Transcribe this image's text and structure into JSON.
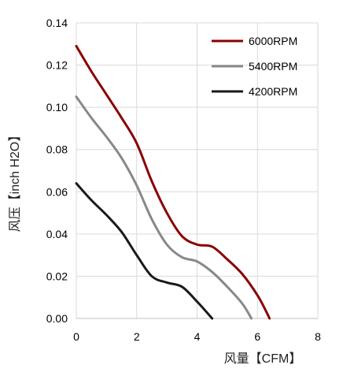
{
  "chart_data": {
    "type": "line",
    "title": "",
    "xlabel": "风量【CFM】",
    "ylabel": "风压【inch H2O】",
    "xlim": [
      0,
      8
    ],
    "ylim": [
      0,
      0.14
    ],
    "xticks": [
      "0",
      "2",
      "4",
      "6",
      "8"
    ],
    "yticks": [
      "0.00",
      "0.02",
      "0.04",
      "0.06",
      "0.08",
      "0.10",
      "0.12",
      "0.14"
    ],
    "grid": true,
    "legend_position": "top-right",
    "series": [
      {
        "name": "6000RPM",
        "color": "#8b0000",
        "points": [
          [
            0,
            0.129
          ],
          [
            0.5,
            0.117
          ],
          [
            1.0,
            0.106
          ],
          [
            1.5,
            0.095
          ],
          [
            2.0,
            0.083
          ],
          [
            2.5,
            0.065
          ],
          [
            3.0,
            0.05
          ],
          [
            3.5,
            0.039
          ],
          [
            4.0,
            0.035
          ],
          [
            4.5,
            0.034
          ],
          [
            5.0,
            0.028
          ],
          [
            5.5,
            0.021
          ],
          [
            6.0,
            0.011
          ],
          [
            6.3,
            0.003
          ],
          [
            6.4,
            0.0
          ]
        ]
      },
      {
        "name": "5400RPM",
        "color": "#888888",
        "points": [
          [
            0,
            0.105
          ],
          [
            0.5,
            0.095
          ],
          [
            1.0,
            0.086
          ],
          [
            1.5,
            0.076
          ],
          [
            2.0,
            0.063
          ],
          [
            2.5,
            0.047
          ],
          [
            3.0,
            0.035
          ],
          [
            3.5,
            0.029
          ],
          [
            4.0,
            0.027
          ],
          [
            4.5,
            0.022
          ],
          [
            5.0,
            0.015
          ],
          [
            5.5,
            0.007
          ],
          [
            5.8,
            0.0
          ]
        ]
      },
      {
        "name": "4200RPM",
        "color": "#1a1a1a",
        "points": [
          [
            0,
            0.064
          ],
          [
            0.5,
            0.056
          ],
          [
            1.0,
            0.049
          ],
          [
            1.5,
            0.041
          ],
          [
            2.0,
            0.03
          ],
          [
            2.5,
            0.02
          ],
          [
            3.0,
            0.017
          ],
          [
            3.5,
            0.015
          ],
          [
            4.0,
            0.008
          ],
          [
            4.5,
            0.0
          ]
        ]
      }
    ]
  }
}
